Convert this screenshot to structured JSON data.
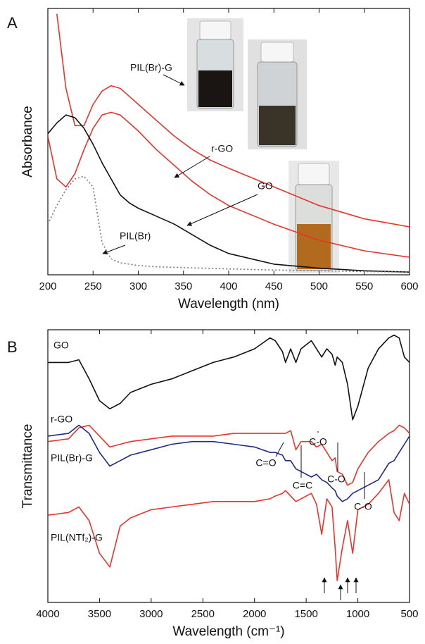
{
  "chart_data": [
    {
      "type": "line",
      "panel": "A",
      "xlabel": "Wavelength (nm)",
      "ylabel": "Absorbance",
      "xlim": [
        200,
        600
      ],
      "xticks": [
        200,
        250,
        300,
        350,
        400,
        450,
        500,
        550,
        600
      ],
      "ylim": [
        0,
        1
      ],
      "x": [
        200,
        210,
        220,
        230,
        240,
        250,
        260,
        270,
        280,
        290,
        300,
        320,
        340,
        360,
        380,
        400,
        450,
        500,
        550,
        600
      ],
      "series": [
        {
          "name": "PIL(Br)-G",
          "color": "#e8342a",
          "line_style": "solid",
          "values": [
            null,
            0.98,
            0.7,
            0.56,
            0.56,
            0.64,
            0.69,
            0.71,
            0.7,
            0.67,
            0.64,
            0.58,
            0.52,
            0.47,
            0.43,
            0.4,
            0.33,
            0.26,
            0.21,
            0.18
          ]
        },
        {
          "name": "r-GO",
          "color": "#e8342a",
          "line_style": "solid",
          "values": [
            0.52,
            0.36,
            0.33,
            0.38,
            0.47,
            0.55,
            0.6,
            0.61,
            0.6,
            0.57,
            0.54,
            0.47,
            0.41,
            0.35,
            0.3,
            0.26,
            0.19,
            0.13,
            0.09,
            0.066
          ]
        },
        {
          "name": "GO",
          "color": "#111111",
          "line_style": "solid",
          "values": [
            0.53,
            0.57,
            0.6,
            0.59,
            0.55,
            0.49,
            0.42,
            0.36,
            0.3,
            0.27,
            0.25,
            0.22,
            0.19,
            0.15,
            0.11,
            0.08,
            0.04,
            0.025,
            0.015,
            0.01
          ]
        },
        {
          "name": "PIL(Br)",
          "color": "#777777",
          "line_style": "dotted",
          "values": [
            0.19,
            0.26,
            0.32,
            0.36,
            0.37,
            0.33,
            0.12,
            0.06,
            0.045,
            0.04,
            0.035,
            0.03,
            0.028,
            0.026,
            0.024,
            0.022,
            0.018,
            0.015,
            0.012,
            0.01
          ]
        }
      ]
    },
    {
      "type": "line",
      "panel": "B",
      "xlabel": "Wavelength (cm⁻¹)",
      "ylabel": "Transmittance",
      "xlim": [
        4000,
        500
      ],
      "xticks": [
        4000,
        3500,
        3000,
        2500,
        2000,
        1500,
        1000,
        500
      ],
      "ylim": [
        0,
        1
      ],
      "x": [
        4000,
        3800,
        3700,
        3600,
        3500,
        3400,
        3300,
        3200,
        3000,
        2800,
        2600,
        2400,
        2200,
        2000,
        1850,
        1800,
        1730,
        1700,
        1650,
        1600,
        1550,
        1450,
        1400,
        1350,
        1300,
        1250,
        1220,
        1200,
        1150,
        1100,
        1050,
        1000,
        900,
        800,
        700,
        650,
        600,
        550,
        500
      ],
      "series": [
        {
          "name": "GO",
          "color": "#111111",
          "values": [
            0.88,
            0.88,
            0.89,
            0.82,
            0.74,
            0.71,
            0.73,
            0.77,
            0.8,
            0.82,
            0.85,
            0.88,
            0.9,
            0.93,
            0.97,
            0.96,
            0.92,
            0.88,
            0.93,
            0.88,
            0.93,
            0.96,
            0.93,
            0.9,
            0.93,
            0.91,
            0.87,
            0.9,
            0.88,
            0.8,
            0.67,
            0.72,
            0.86,
            0.93,
            0.97,
            0.98,
            0.97,
            0.9,
            0.88
          ]
        },
        {
          "name": "r-GO",
          "color": "#e8342a",
          "values": [
            0.59,
            0.6,
            0.64,
            0.65,
            0.61,
            0.57,
            0.58,
            0.59,
            0.6,
            0.61,
            0.61,
            0.61,
            0.62,
            0.62,
            0.62,
            0.62,
            0.62,
            0.62,
            0.63,
            0.56,
            0.59,
            0.59,
            0.57,
            0.58,
            0.55,
            0.52,
            0.53,
            0.48,
            0.47,
            0.43,
            0.44,
            0.49,
            0.55,
            0.59,
            0.62,
            0.63,
            0.65,
            0.64,
            0.62
          ]
        },
        {
          "name": "PIL(Br)-G",
          "color": "#1f2a8a",
          "values": [
            0.61,
            0.62,
            0.65,
            0.62,
            0.55,
            0.5,
            0.52,
            0.54,
            0.56,
            0.58,
            0.59,
            0.59,
            0.58,
            0.57,
            0.55,
            0.55,
            0.54,
            0.52,
            0.52,
            0.49,
            0.48,
            0.46,
            0.47,
            0.45,
            0.44,
            0.42,
            0.41,
            0.39,
            0.37,
            0.38,
            0.4,
            0.41,
            0.43,
            0.45,
            0.51,
            0.52,
            0.55,
            0.58,
            0.61
          ]
        },
        {
          "name": "PIL(NTf₂)-G",
          "color": "#e8342a",
          "values": [
            0.32,
            0.33,
            0.35,
            0.3,
            0.18,
            0.13,
            0.28,
            0.31,
            0.34,
            0.35,
            0.36,
            0.37,
            0.37,
            0.37,
            0.38,
            0.39,
            0.4,
            0.41,
            0.39,
            0.37,
            0.38,
            0.4,
            0.36,
            0.25,
            0.38,
            0.35,
            0.2,
            0.08,
            0.2,
            0.3,
            0.18,
            0.34,
            0.36,
            0.4,
            0.45,
            0.33,
            0.3,
            0.4,
            0.36
          ]
        }
      ],
      "annotations": [
        "C=O",
        "C=C",
        "C-O",
        "C-O",
        "C-O"
      ]
    }
  ]
}
